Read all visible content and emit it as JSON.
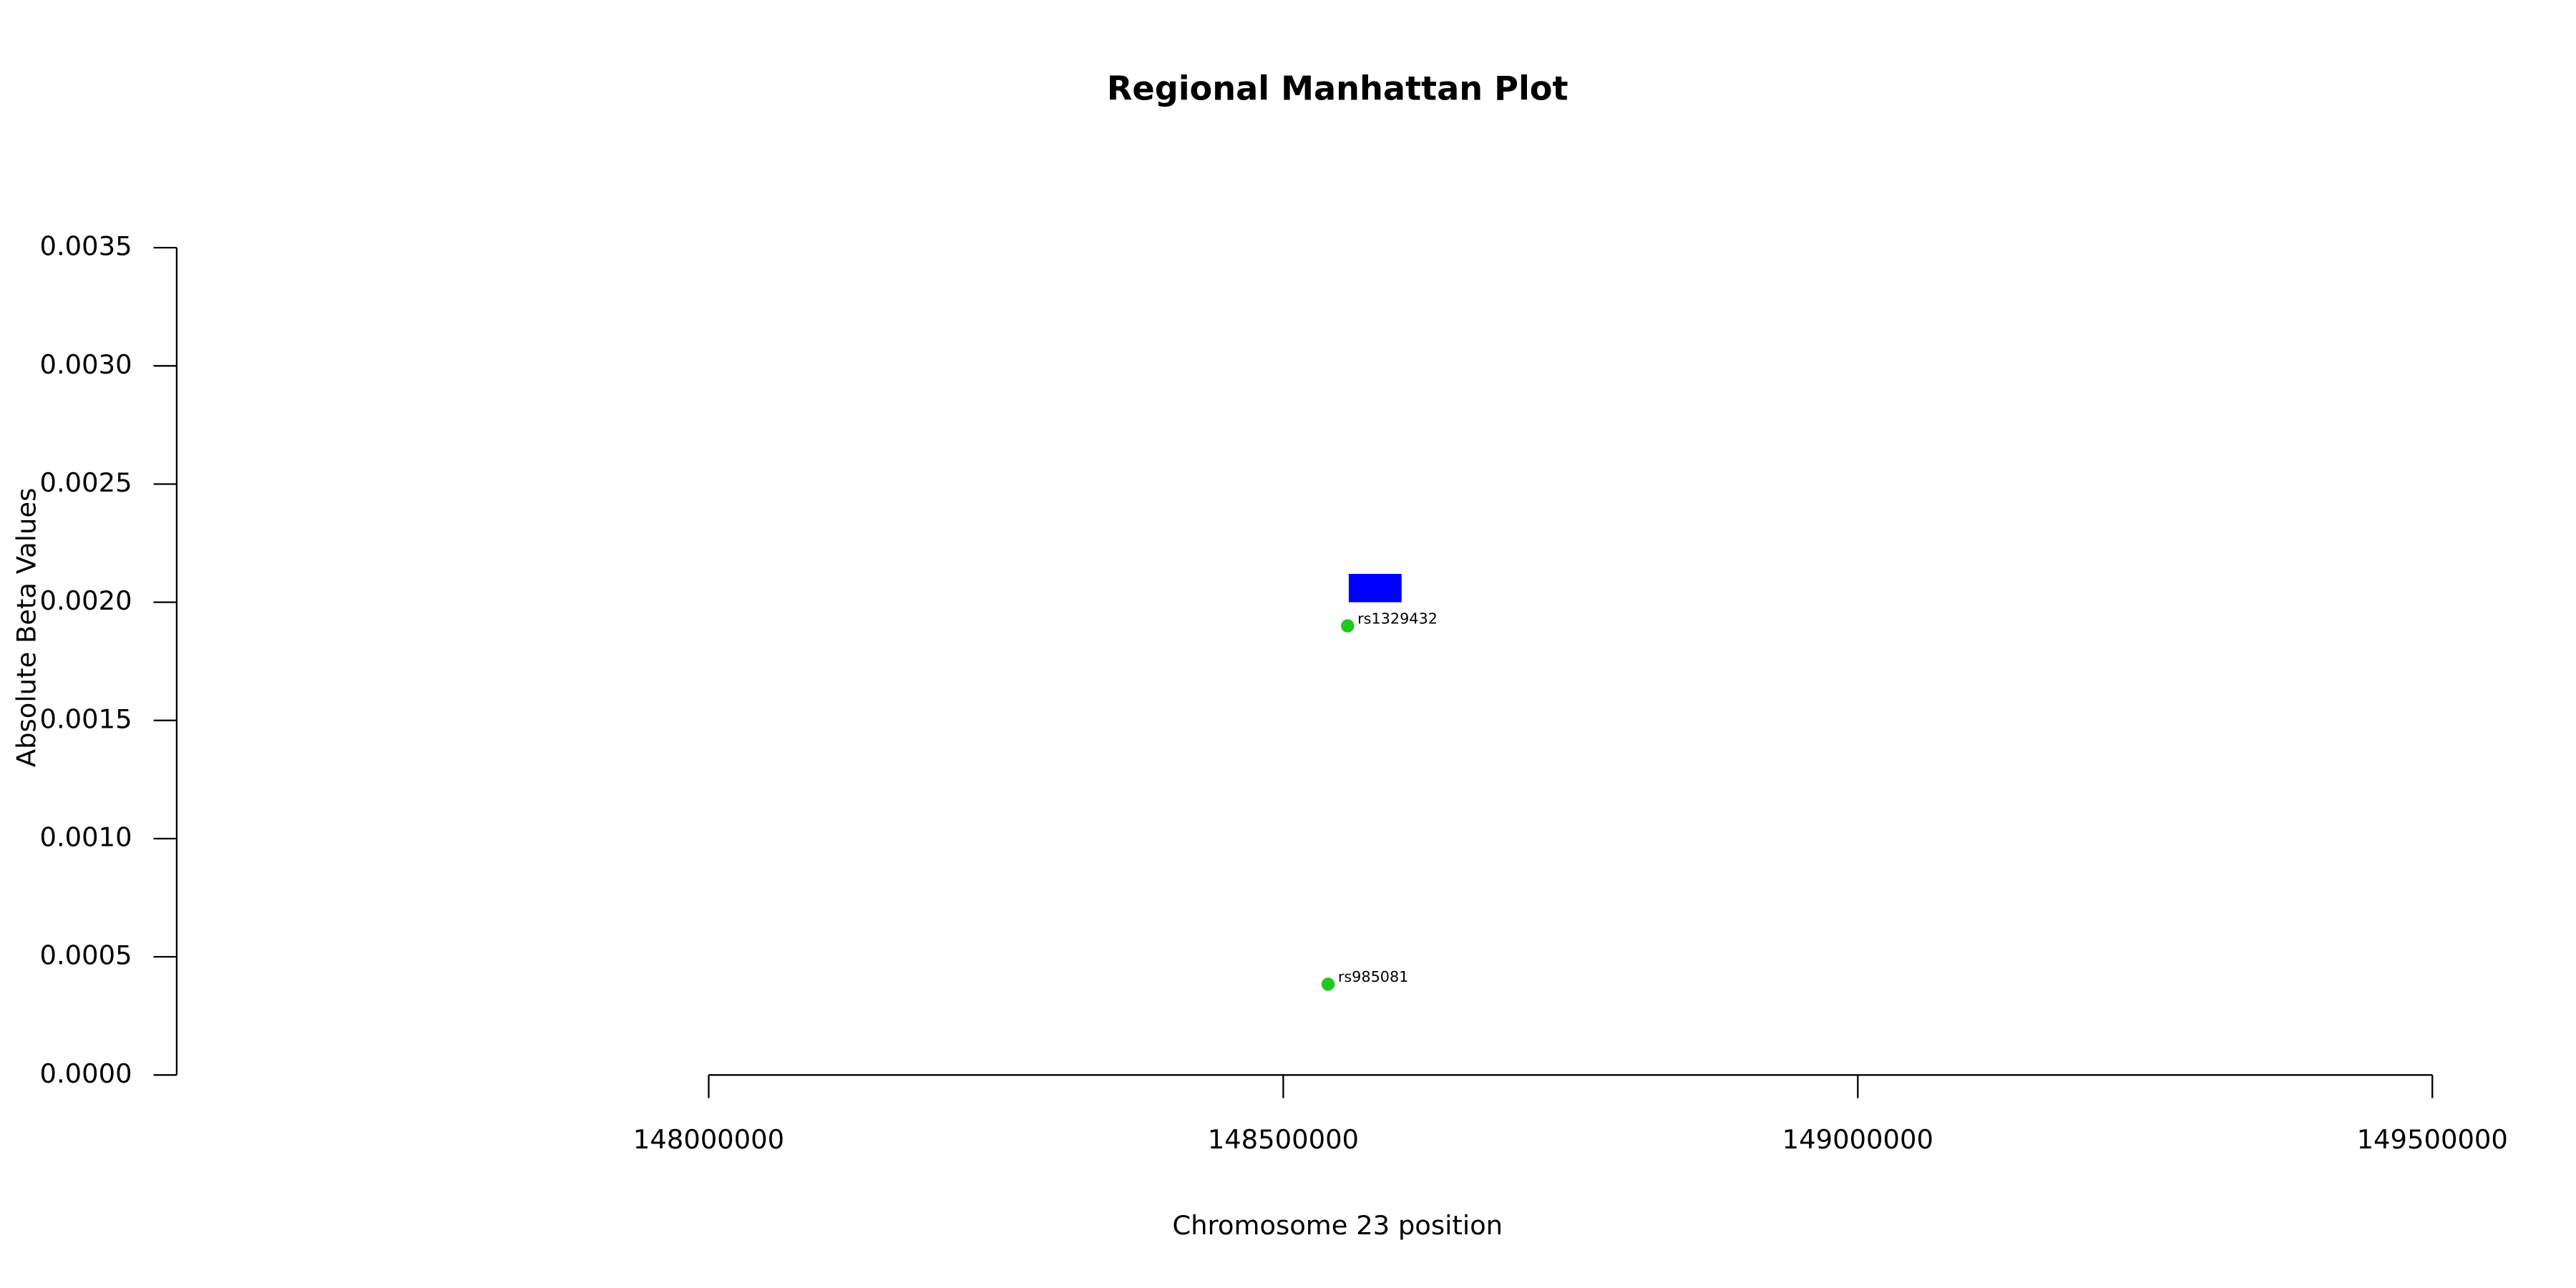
{
  "chart_data": {
    "type": "scatter",
    "title": "Regional Manhattan Plot",
    "x_label": "Chromosome 23 position",
    "y_label": "Absolute Beta Values",
    "xlim": [
      147537000,
      149500000
    ],
    "xticks": [
      148000000,
      148500000,
      149000000,
      149500000
    ],
    "ylim": [
      0,
      0.0035
    ],
    "yticks": [
      {
        "value": 0,
        "label": "0.0000"
      },
      {
        "value": 0.0005,
        "label": "0.0005"
      },
      {
        "value": 0.001,
        "label": "0.0010"
      },
      {
        "value": 0.0015,
        "label": "0.0015"
      },
      {
        "value": 0.002,
        "label": "0.0020"
      },
      {
        "value": 0.0025,
        "label": "0.0025"
      },
      {
        "value": 0.003,
        "label": "0.0030"
      },
      {
        "value": 0.0035,
        "label": "0.0035"
      }
    ],
    "points": {
      "color": "#1ec81e",
      "x": [
        148556000,
        148539000
      ],
      "values": [
        0.0019,
        0.000384
      ],
      "labels": [
        "rs1329432",
        "rs985081"
      ]
    },
    "regions": [
      {
        "color": "#0000ff",
        "start": 148557000,
        "end": 148603000,
        "bottom": 0.002,
        "top": 0.00212
      }
    ]
  }
}
